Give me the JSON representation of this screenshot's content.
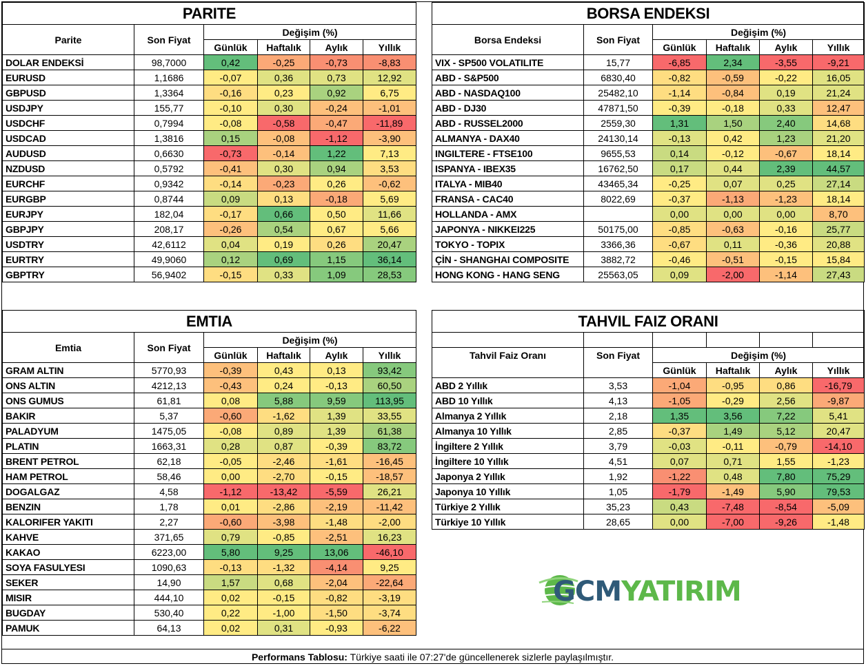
{
  "palette": {
    "g3": "#63be7b",
    "g2": "#86c97d",
    "g1": "#a9d27f",
    "lg": "#c9db81",
    "yg": "#e0e283",
    "y": "#ffeb84",
    "ly": "#fedd81",
    "o1": "#fdc07c",
    "o2": "#fba977",
    "o3": "#f98f72",
    "r": "#f8696b"
  },
  "columns": {
    "son_fiyat": "Son Fiyat",
    "degisim": "Değişim (%)",
    "gunluk": "Günlük",
    "haftalik": "Haftalık",
    "aylik": "Aylık",
    "yillik": "Yıllık"
  },
  "parite": {
    "title": "PARITE",
    "name_header": "Parite",
    "rows": [
      {
        "name": "DOLAR ENDEKSİ",
        "price": "98,7000",
        "vals": [
          "0,42",
          "-0,25",
          "-0,73",
          "-8,83"
        ],
        "colors": [
          "g3",
          "o2",
          "o3",
          "o3"
        ]
      },
      {
        "name": "EURUSD",
        "price": "1,1686",
        "vals": [
          "-0,07",
          "0,36",
          "0,73",
          "12,92"
        ],
        "colors": [
          "y",
          "yg",
          "yg",
          "yg"
        ]
      },
      {
        "name": "GBPUSD",
        "price": "1,3364",
        "vals": [
          "-0,16",
          "0,23",
          "0,92",
          "6,75"
        ],
        "colors": [
          "ly",
          "y",
          "g1",
          "y"
        ]
      },
      {
        "name": "USDJPY",
        "price": "155,77",
        "vals": [
          "-0,10",
          "0,30",
          "-0,24",
          "-1,01"
        ],
        "colors": [
          "y",
          "yg",
          "o1",
          "o1"
        ]
      },
      {
        "name": "USDCHF",
        "price": "0,7994",
        "vals": [
          "-0,08",
          "-0,58",
          "-0,47",
          "-11,89"
        ],
        "colors": [
          "y",
          "r",
          "o2",
          "r"
        ]
      },
      {
        "name": "USDCAD",
        "price": "1,3816",
        "vals": [
          "0,15",
          "-0,08",
          "-1,12",
          "-3,90"
        ],
        "colors": [
          "g1",
          "o1",
          "r",
          "o1"
        ]
      },
      {
        "name": "AUDUSD",
        "price": "0,6630",
        "vals": [
          "-0,73",
          "-0,14",
          "1,22",
          "7,13"
        ],
        "colors": [
          "r",
          "o1",
          "g3",
          "y"
        ]
      },
      {
        "name": "NZDUSD",
        "price": "0,5792",
        "vals": [
          "-0,41",
          "0,30",
          "0,94",
          "3,53"
        ],
        "colors": [
          "o1",
          "yg",
          "g1",
          "ly"
        ]
      },
      {
        "name": "EURCHF",
        "price": "0,9342",
        "vals": [
          "-0,14",
          "-0,23",
          "0,26",
          "-0,62"
        ],
        "colors": [
          "ly",
          "o2",
          "y",
          "o1"
        ]
      },
      {
        "name": "EURGBP",
        "price": "0,8744",
        "vals": [
          "0,09",
          "0,13",
          "-0,18",
          "5,69"
        ],
        "colors": [
          "lg",
          "ly",
          "o2",
          "y"
        ]
      },
      {
        "name": "EURJPY",
        "price": "182,04",
        "vals": [
          "-0,17",
          "0,66",
          "0,50",
          "11,66"
        ],
        "colors": [
          "ly",
          "g3",
          "y",
          "yg"
        ]
      },
      {
        "name": "GBPJPY",
        "price": "208,17",
        "vals": [
          "-0,26",
          "0,54",
          "0,67",
          "5,66"
        ],
        "colors": [
          "o1",
          "g1",
          "y",
          "y"
        ]
      },
      {
        "name": "USDTRY",
        "price": "42,6112",
        "vals": [
          "0,04",
          "0,19",
          "0,26",
          "20,47"
        ],
        "colors": [
          "yg",
          "y",
          "ly",
          "g1"
        ]
      },
      {
        "name": "EURTRY",
        "price": "49,9060",
        "vals": [
          "0,12",
          "0,69",
          "1,15",
          "36,14"
        ],
        "colors": [
          "g1",
          "g3",
          "g2",
          "g3"
        ]
      },
      {
        "name": "GBPTRY",
        "price": "56,9402",
        "vals": [
          "-0,15",
          "0,33",
          "1,09",
          "28,53"
        ],
        "colors": [
          "ly",
          "yg",
          "g2",
          "g2"
        ]
      }
    ]
  },
  "borsa": {
    "title": "BORSA ENDEKSI",
    "name_header": "Borsa Endeksi",
    "rows": [
      {
        "name": "VIX  - SP500 VOLATILITE",
        "price": "15,77",
        "vals": [
          "-6,85",
          "2,34",
          "-3,55",
          "-9,21"
        ],
        "colors": [
          "r",
          "g3",
          "r",
          "r"
        ]
      },
      {
        "name": "ABD - S&P500",
        "price": "6830,40",
        "vals": [
          "-0,82",
          "-0,59",
          "-0,22",
          "16,05"
        ],
        "colors": [
          "ly",
          "o1",
          "y",
          "yg"
        ]
      },
      {
        "name": "ABD - NASDAQ100",
        "price": "25482,10",
        "vals": [
          "-1,14",
          "-0,84",
          "0,19",
          "21,24"
        ],
        "colors": [
          "ly",
          "o1",
          "yg",
          "yg"
        ]
      },
      {
        "name": "ABD - DJ30",
        "price": "47871,50",
        "vals": [
          "-0,39",
          "-0,18",
          "0,33",
          "12,47"
        ],
        "colors": [
          "y",
          "y",
          "yg",
          "o1"
        ]
      },
      {
        "name": "ABD - RUSSEL2000",
        "price": "2559,30",
        "vals": [
          "1,31",
          "1,50",
          "2,40",
          "14,68"
        ],
        "colors": [
          "g3",
          "g1",
          "g2",
          "ly"
        ]
      },
      {
        "name": "ALMANYA - DAX40",
        "price": "24130,14",
        "vals": [
          "-0,13",
          "0,42",
          "1,23",
          "21,20"
        ],
        "colors": [
          "yg",
          "y",
          "g1",
          "yg"
        ]
      },
      {
        "name": "INGILTERE - FTSE100",
        "price": "9655,53",
        "vals": [
          "0,14",
          "-0,12",
          "-0,67",
          "18,14"
        ],
        "colors": [
          "lg",
          "y",
          "o1",
          "y"
        ]
      },
      {
        "name": "ISPANYA - IBEX35",
        "price": "16762,50",
        "vals": [
          "0,17",
          "0,44",
          "2,39",
          "44,57"
        ],
        "colors": [
          "lg",
          "yg",
          "g3",
          "g3"
        ]
      },
      {
        "name": "ITALYA - MIB40",
        "price": "43465,34",
        "vals": [
          "-0,25",
          "0,07",
          "0,25",
          "27,14"
        ],
        "colors": [
          "y",
          "yg",
          "yg",
          "lg"
        ]
      },
      {
        "name": "FRANSA - CAC40",
        "price": "8022,69",
        "vals": [
          "-0,37",
          "-1,13",
          "-1,23",
          "18,14"
        ],
        "colors": [
          "y",
          "o2",
          "o1",
          "y"
        ]
      },
      {
        "name": "HOLLANDA - AMX",
        "price": "",
        "vals": [
          "0,00",
          "0,00",
          "0,00",
          "8,70"
        ],
        "colors": [
          "yg",
          "yg",
          "yg",
          "o1"
        ]
      },
      {
        "name": "JAPONYA - NIKKEI225",
        "price": "50175,00",
        "vals": [
          "-0,85",
          "-0,63",
          "-0,16",
          "25,77"
        ],
        "colors": [
          "ly",
          "o1",
          "y",
          "lg"
        ]
      },
      {
        "name": "TOKYO - TOPIX",
        "price": "3366,36",
        "vals": [
          "-0,67",
          "0,11",
          "-0,36",
          "20,88"
        ],
        "colors": [
          "ly",
          "yg",
          "y",
          "yg"
        ]
      },
      {
        "name": "ÇİN - SHANGHAI COMPOSITE",
        "price": "3882,72",
        "vals": [
          "-0,46",
          "-0,51",
          "-0,15",
          "15,84"
        ],
        "colors": [
          "y",
          "o1",
          "y",
          "y"
        ]
      },
      {
        "name": "HONG KONG - HANG SENG",
        "price": "25563,05",
        "vals": [
          "0,09",
          "-2,00",
          "-1,14",
          "27,43"
        ],
        "colors": [
          "yg",
          "r",
          "o1",
          "lg"
        ]
      }
    ]
  },
  "emtia": {
    "title": "EMTIA",
    "name_header": "Emtia",
    "rows": [
      {
        "name": "GRAM ALTIN",
        "price": "5770,93",
        "vals": [
          "-0,39",
          "0,43",
          "0,13",
          "93,42"
        ],
        "colors": [
          "o1",
          "y",
          "y",
          "g2"
        ]
      },
      {
        "name": "ONS ALTIN",
        "price": "4212,13",
        "vals": [
          "-0,43",
          "0,24",
          "-0,13",
          "60,50"
        ],
        "colors": [
          "o1",
          "y",
          "y",
          "g1"
        ]
      },
      {
        "name": "ONS GUMUS",
        "price": "61,81",
        "vals": [
          "0,08",
          "5,88",
          "9,59",
          "113,95"
        ],
        "colors": [
          "y",
          "g2",
          "g2",
          "g3"
        ]
      },
      {
        "name": "BAKIR",
        "price": "5,37",
        "vals": [
          "-0,60",
          "-1,62",
          "1,39",
          "33,55"
        ],
        "colors": [
          "o2",
          "ly",
          "yg",
          "yg"
        ]
      },
      {
        "name": "PALADYUM",
        "price": "1475,05",
        "vals": [
          "-0,08",
          "0,89",
          "1,39",
          "61,38"
        ],
        "colors": [
          "y",
          "yg",
          "yg",
          "g1"
        ]
      },
      {
        "name": "PLATIN",
        "price": "1663,31",
        "vals": [
          "0,28",
          "0,87",
          "-0,39",
          "83,72"
        ],
        "colors": [
          "yg",
          "yg",
          "y",
          "g2"
        ]
      },
      {
        "name": "BRENT PETROL",
        "price": "62,18",
        "vals": [
          "-0,05",
          "-2,46",
          "-1,61",
          "-16,45"
        ],
        "colors": [
          "y",
          "ly",
          "ly",
          "o1"
        ]
      },
      {
        "name": "HAM PETROL",
        "price": "58,46",
        "vals": [
          "0,00",
          "-2,70",
          "-0,15",
          "-18,57"
        ],
        "colors": [
          "y",
          "ly",
          "y",
          "o1"
        ]
      },
      {
        "name": "DOGALGAZ",
        "price": "4,58",
        "vals": [
          "-1,12",
          "-13,42",
          "-5,59",
          "26,21"
        ],
        "colors": [
          "r",
          "r",
          "r",
          "yg"
        ]
      },
      {
        "name": "BENZIN",
        "price": "1,78",
        "vals": [
          "0,01",
          "-2,86",
          "-2,19",
          "-11,42"
        ],
        "colors": [
          "y",
          "ly",
          "o1",
          "o1"
        ]
      },
      {
        "name": "KALORIFER YAKITI",
        "price": "2,27",
        "vals": [
          "-0,60",
          "-3,98",
          "-1,48",
          "-2,00"
        ],
        "colors": [
          "o2",
          "o1",
          "ly",
          "ly"
        ]
      },
      {
        "name": "KAHVE",
        "price": "371,65",
        "vals": [
          "0,79",
          "-0,85",
          "-2,51",
          "16,23"
        ],
        "colors": [
          "yg",
          "y",
          "o1",
          "yg"
        ]
      },
      {
        "name": "KAKAO",
        "price": "6223,00",
        "vals": [
          "5,80",
          "9,25",
          "13,06",
          "-46,10"
        ],
        "colors": [
          "g3",
          "g3",
          "g3",
          "r"
        ]
      },
      {
        "name": "SOYA FASULYESI",
        "price": "1090,63",
        "vals": [
          "-0,13",
          "-1,32",
          "-4,14",
          "9,25"
        ],
        "colors": [
          "ly",
          "ly",
          "o3",
          "y"
        ]
      },
      {
        "name": "SEKER",
        "price": "14,90",
        "vals": [
          "1,57",
          "0,68",
          "-2,04",
          "-22,64"
        ],
        "colors": [
          "lg",
          "yg",
          "o1",
          "o2"
        ]
      },
      {
        "name": "MISIR",
        "price": "444,10",
        "vals": [
          "0,02",
          "-0,15",
          "-0,82",
          "-3,19"
        ],
        "colors": [
          "y",
          "y",
          "ly",
          "ly"
        ]
      },
      {
        "name": "BUGDAY",
        "price": "530,40",
        "vals": [
          "0,22",
          "-1,00",
          "-1,50",
          "-3,74"
        ],
        "colors": [
          "y",
          "y",
          "ly",
          "ly"
        ]
      },
      {
        "name": "PAMUK",
        "price": "64,13",
        "vals": [
          "0,02",
          "0,31",
          "-0,93",
          "-6,22"
        ],
        "colors": [
          "y",
          "yg",
          "y",
          "o1"
        ]
      }
    ]
  },
  "tahvil": {
    "title": "TAHVIL FAIZ ORANI",
    "name_header": "Tahvil Faiz Oranı",
    "rows": [
      {
        "name": "ABD 2 Yıllık",
        "price": "3,53",
        "vals": [
          "-1,04",
          "-0,95",
          "0,86",
          "-16,79"
        ],
        "colors": [
          "o2",
          "ly",
          "ly",
          "r"
        ]
      },
      {
        "name": "ABD 10 Yıllık",
        "price": "4,13",
        "vals": [
          "-1,05",
          "-0,29",
          "2,56",
          "-9,87"
        ],
        "colors": [
          "o2",
          "y",
          "yg",
          "o2"
        ]
      },
      {
        "name": "Almanya 2 Yıllık",
        "price": "2,18",
        "vals": [
          "1,35",
          "3,56",
          "7,22",
          "5,41"
        ],
        "colors": [
          "g3",
          "g3",
          "g2",
          "yg"
        ]
      },
      {
        "name": "Almanya 10 Yıllık",
        "price": "2,85",
        "vals": [
          "-0,37",
          "1,49",
          "5,12",
          "20,47"
        ],
        "colors": [
          "ly",
          "g1",
          "g1",
          "yg"
        ]
      },
      {
        "name": "İngiltere 2 Yıllık",
        "price": "3,79",
        "vals": [
          "-0,03",
          "-0,11",
          "-0,79",
          "-14,10"
        ],
        "colors": [
          "yg",
          "y",
          "o1",
          "r"
        ]
      },
      {
        "name": "İngiltere 10 Yıllık",
        "price": "4,51",
        "vals": [
          "0,07",
          "0,71",
          "1,55",
          "-1,23"
        ],
        "colors": [
          "yg",
          "yg",
          "y",
          "y"
        ]
      },
      {
        "name": "Japonya 2 Yıllık",
        "price": "1,92",
        "vals": [
          "-1,22",
          "0,48",
          "7,80",
          "75,29"
        ],
        "colors": [
          "o3",
          "yg",
          "g3",
          "g3"
        ]
      },
      {
        "name": "Japonya 10 Yıllık",
        "price": "1,05",
        "vals": [
          "-1,79",
          "-1,49",
          "5,90",
          "79,53"
        ],
        "colors": [
          "r",
          "o1",
          "g2",
          "g3"
        ]
      },
      {
        "name": "Türkiye 2 Yıllık",
        "price": "35,23",
        "vals": [
          "0,43",
          "-7,48",
          "-8,54",
          "-5,09"
        ],
        "colors": [
          "lg",
          "r",
          "r",
          "o1"
        ]
      },
      {
        "name": "Türkiye 10 Yıllık",
        "price": "28,65",
        "vals": [
          "0,00",
          "-7,00",
          "-9,26",
          "-1,48"
        ],
        "colors": [
          "yg",
          "r",
          "r",
          "y"
        ]
      }
    ]
  },
  "logo": {
    "part1": "GCM",
    "part2": "YATIRIM"
  },
  "footer": {
    "bold": "Performans Tablosu:",
    "text": " Türkiye saati ile 07:27'de güncellenerek sizlerle paylaşılmıştır."
  }
}
